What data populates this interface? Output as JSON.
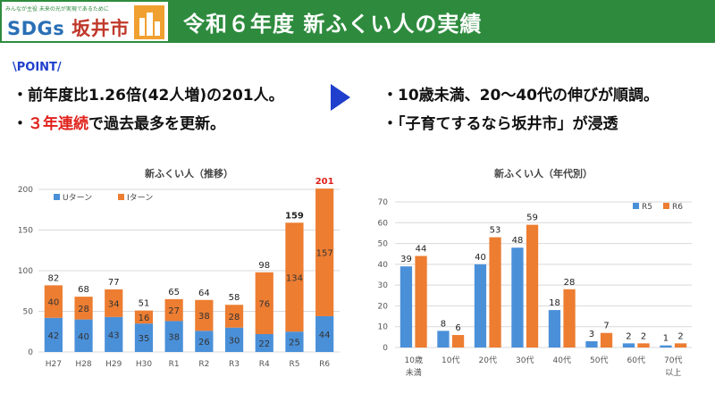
{
  "header": {
    "logo_small": "みんなが主役 未来の光が実現であるために",
    "logo_sdgs": "SDGs",
    "logo_city": "坂井市",
    "title": "令和６年度 新ふくい人の実績"
  },
  "point_label": "\\POINT/",
  "bullets_left": [
    {
      "text": "・前年度比1.26倍(42人増)の201人。"
    },
    {
      "prefix": "・",
      "highlight": "３年連続",
      "suffix": "で過去最多を更新。"
    }
  ],
  "bullets_right": [
    {
      "text": "・10歳未満、20～40代の伸びが順調。"
    },
    {
      "text": "・「子育てするなら坂井市」が浸透"
    }
  ],
  "colors": {
    "u": "#4a90d9",
    "i": "#ed7d31",
    "header": "#2e8b3e",
    "accent_red": "#e0211b"
  },
  "chart_data": [
    {
      "type": "bar",
      "stacked": true,
      "title": "新ふくい人（推移）",
      "categories": [
        "H27",
        "H28",
        "H29",
        "H30",
        "R1",
        "R2",
        "R3",
        "R4",
        "R5",
        "R6"
      ],
      "series": [
        {
          "name": "Uターン",
          "values": [
            42,
            40,
            43,
            35,
            38,
            26,
            30,
            22,
            25,
            44
          ]
        },
        {
          "name": "Iターン",
          "values": [
            40,
            28,
            34,
            16,
            27,
            38,
            28,
            76,
            134,
            157
          ]
        }
      ],
      "totals": [
        82,
        68,
        77,
        51,
        65,
        64,
        58,
        98,
        159,
        201
      ],
      "ylim": [
        0,
        200
      ],
      "yticks": [
        0,
        50,
        100,
        150,
        200
      ],
      "legend": "top-left",
      "grid": true
    },
    {
      "type": "bar",
      "title": "新ふくい人（年代別）",
      "categories": [
        [
          "10歳",
          "未満"
        ],
        [
          "10代"
        ],
        [
          "20代"
        ],
        [
          "30代"
        ],
        [
          "40代"
        ],
        [
          "50代"
        ],
        [
          "60代"
        ],
        [
          "70代",
          "以上"
        ]
      ],
      "series": [
        {
          "name": "R5",
          "values": [
            39,
            8,
            40,
            48,
            18,
            3,
            2,
            1
          ]
        },
        {
          "name": "R6",
          "values": [
            44,
            6,
            53,
            59,
            28,
            7,
            2,
            2
          ]
        }
      ],
      "ylim": [
        0,
        70
      ],
      "yticks": [
        0,
        10,
        20,
        30,
        40,
        50,
        60,
        70
      ],
      "legend": "top-right",
      "grid": true
    }
  ]
}
